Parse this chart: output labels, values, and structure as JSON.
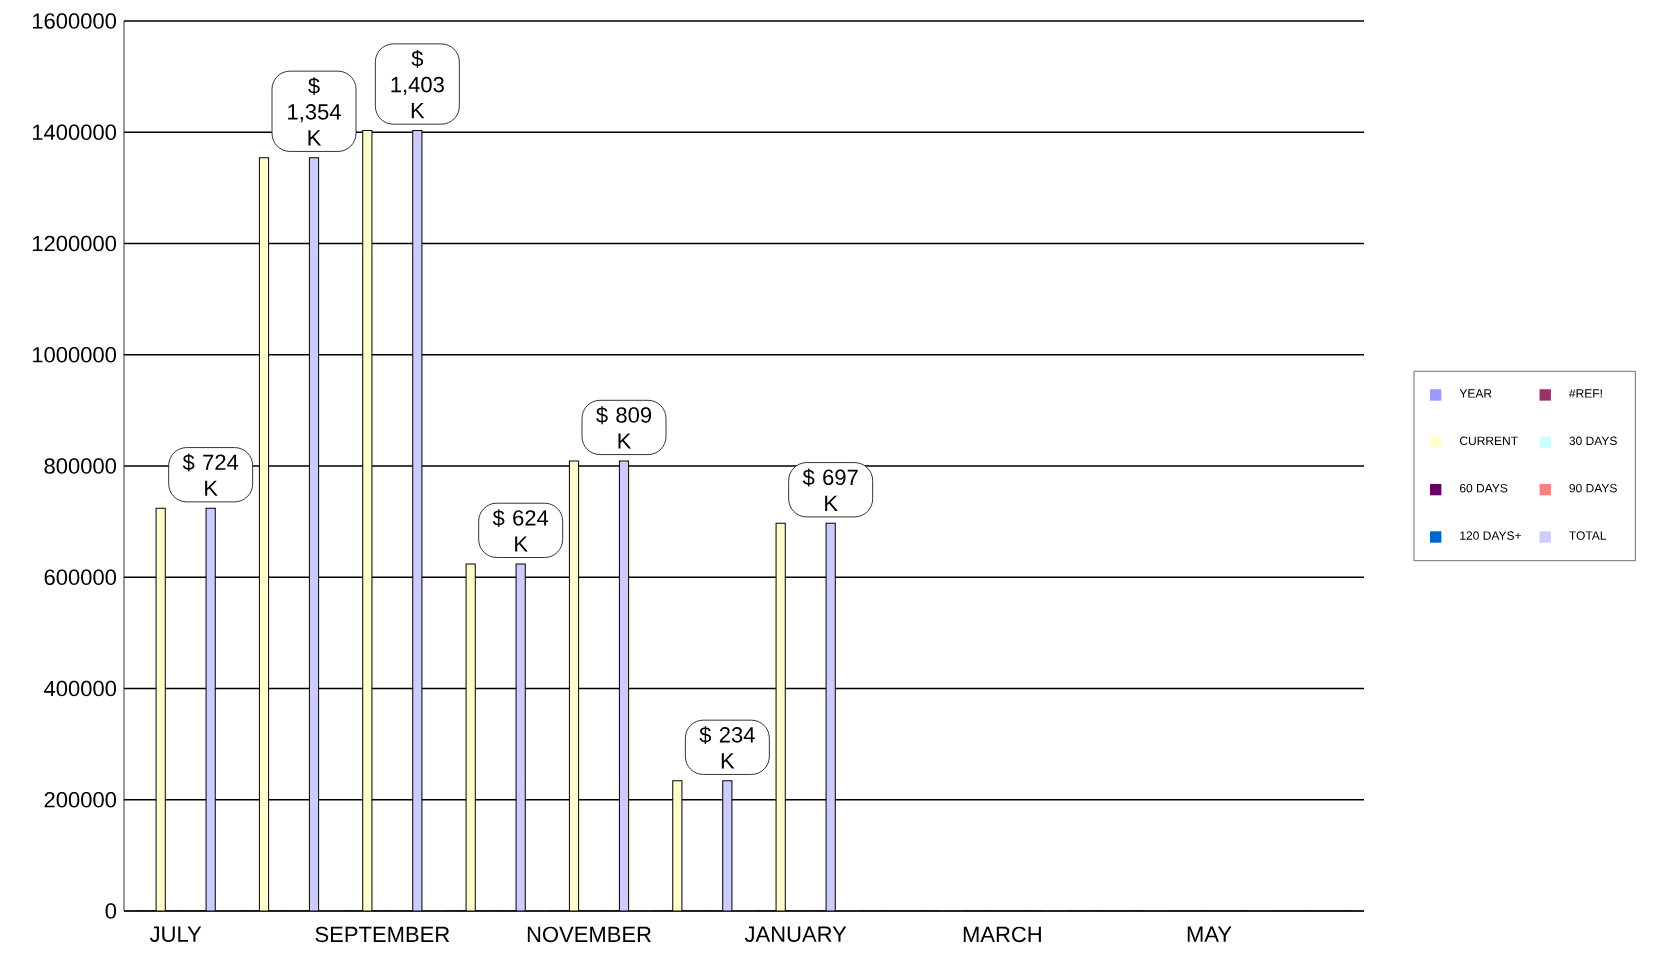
{
  "chart_data": {
    "type": "bar",
    "categories": [
      "JULY",
      null,
      "SEPTEMBER",
      null,
      "NOVEMBER",
      null,
      "JANUARY",
      null,
      "MARCH",
      null,
      "MAY",
      null
    ],
    "series": [
      {
        "name": "YEAR",
        "color": "#9999ff",
        "values": [
          0,
          0,
          0,
          0,
          0,
          0,
          0,
          0,
          0,
          0,
          0,
          0
        ]
      },
      {
        "name": "#REF!",
        "color": "#993366",
        "values": [
          0,
          0,
          0,
          0,
          0,
          0,
          0,
          0,
          0,
          0,
          0,
          0
        ]
      },
      {
        "name": "CURRENT",
        "color": "#ffffcc",
        "values": [
          724000,
          1354000,
          1403000,
          624000,
          809000,
          234000,
          697000,
          0,
          0,
          0,
          0,
          0
        ]
      },
      {
        "name": "30 DAYS",
        "color": "#ccffff",
        "values": [
          0,
          0,
          0,
          0,
          0,
          0,
          0,
          0,
          0,
          0,
          0,
          0
        ]
      },
      {
        "name": "60 DAYS",
        "color": "#660066",
        "values": [
          0,
          0,
          0,
          0,
          0,
          0,
          0,
          0,
          0,
          0,
          0,
          0
        ]
      },
      {
        "name": "90 DAYS",
        "color": "#ff8080",
        "values": [
          0,
          0,
          0,
          0,
          0,
          0,
          0,
          0,
          0,
          0,
          0,
          0
        ]
      },
      {
        "name": "120 DAYS+",
        "color": "#0066cc",
        "values": [
          0,
          0,
          0,
          0,
          0,
          0,
          0,
          0,
          0,
          0,
          0,
          0
        ]
      },
      {
        "name": "TOTAL",
        "color": "#ccccff",
        "values": [
          724000,
          1354000,
          1403000,
          624000,
          809000,
          234000,
          697000,
          0,
          0,
          0,
          0,
          0
        ],
        "value_labels": [
          "$ 724 K",
          "$ 1,354 K",
          "$ 1,403 K",
          "$ 624 K",
          "$ 809 K",
          "$ 234 K",
          "$ 697 K",
          null,
          null,
          null,
          null,
          null
        ]
      }
    ],
    "ylim": [
      0,
      1600000
    ],
    "yticks": [
      0,
      200000,
      400000,
      600000,
      800000,
      1000000,
      1200000,
      1400000,
      1600000
    ],
    "grid": "y",
    "legend": "right"
  }
}
